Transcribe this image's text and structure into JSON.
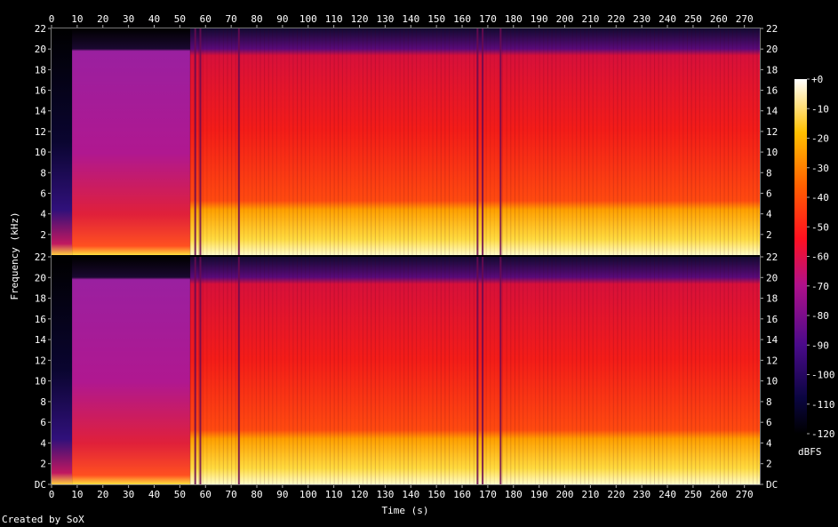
{
  "chart_data": {
    "type": "heatmap",
    "title": "",
    "xlabel": "Time (s)",
    "ylabel": "Frequency (kHz)",
    "xlim": [
      0,
      276
    ],
    "ylim": [
      0,
      22
    ],
    "x_ticks": [
      0,
      10,
      20,
      30,
      40,
      50,
      60,
      70,
      80,
      90,
      100,
      110,
      120,
      130,
      140,
      150,
      160,
      170,
      180,
      190,
      200,
      210,
      220,
      230,
      240,
      250,
      260,
      270
    ],
    "y_ticks": [
      "DC",
      "2",
      "4",
      "6",
      "8",
      "10",
      "12",
      "14",
      "16",
      "18",
      "20",
      "22"
    ],
    "channels": 2,
    "colorbar": {
      "label": "dBFS",
      "range": [
        -120,
        0
      ],
      "ticks": [
        "+0",
        "-10",
        "-20",
        "-30",
        "-40",
        "-50",
        "-60",
        "-70",
        "-80",
        "-90",
        "-100",
        "-110",
        "-120"
      ]
    },
    "spectral_regions": [
      {
        "t": [
          0,
          8
        ],
        "cutoff_khz": 3,
        "level_db": -65
      },
      {
        "t": [
          8,
          54
        ],
        "cutoff_khz": 20,
        "level_db": -60
      },
      {
        "t": [
          54,
          276
        ],
        "cutoff_khz": 20,
        "level_db": -35
      }
    ],
    "dropouts_s": [
      56,
      58,
      73,
      166,
      168,
      175
    ],
    "grid": false,
    "legend": "right"
  },
  "credit": "Created by SoX"
}
